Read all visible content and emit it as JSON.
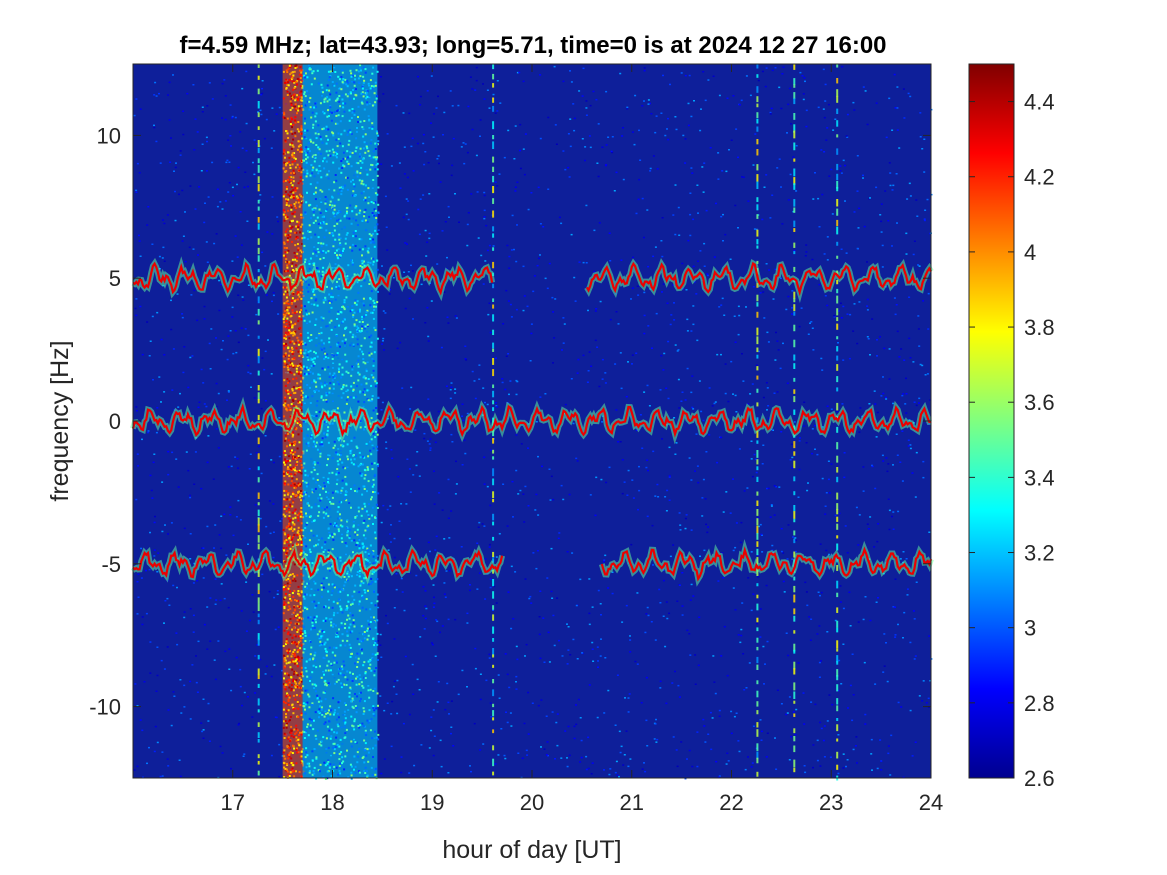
{
  "chart_data": {
    "type": "heatmap",
    "title": "f=4.59 MHz;  lat=43.93; long=5.71, time=0 is at 2024 12 27 16:00",
    "xlabel": "hour of day [UT]",
    "ylabel": "frequency [Hz]",
    "xlim": [
      16.0,
      24.0
    ],
    "ylim": [
      -12.5,
      12.5
    ],
    "xticks": [
      17,
      18,
      19,
      20,
      21,
      22,
      23,
      24
    ],
    "xtick_labels": [
      "17",
      "18",
      "19",
      "20",
      "21",
      "22",
      "23",
      "24"
    ],
    "yticks": [
      10,
      5,
      0,
      -5,
      -10
    ],
    "ytick_labels": [
      "10",
      "5",
      "0",
      "-5",
      "-10"
    ],
    "colorbar": {
      "range": [
        2.6,
        4.5
      ],
      "ticks": [
        4.4,
        4.2,
        4,
        3.8,
        3.6,
        3.4,
        3.2,
        3,
        2.8,
        2.6
      ],
      "tick_labels": [
        "4.4",
        "4.2",
        "4",
        "3.8",
        "3.6",
        "3.4",
        "3.2",
        "3",
        "2.8",
        "2.6"
      ],
      "colormap": "jet"
    },
    "background_level": 2.7,
    "traces": [
      {
        "segments": [
          [
            16.0,
            19.6
          ],
          [
            20.55,
            24.0
          ]
        ],
        "center_hz": 5.0
      },
      {
        "segments": [
          [
            16.0,
            24.0
          ]
        ],
        "center_hz": 0.0
      },
      {
        "segments": [
          [
            16.0,
            19.7
          ],
          [
            20.7,
            24.0
          ]
        ],
        "center_hz": -5.0
      }
    ],
    "broadband_interference": [
      {
        "x_range": [
          17.5,
          17.7
        ],
        "level": 4.1
      },
      {
        "x_range": [
          17.7,
          18.45
        ],
        "level": 3.25
      }
    ],
    "vertical_spikes_hours": [
      17.25,
      19.6,
      22.25,
      22.62,
      23.05
    ]
  }
}
